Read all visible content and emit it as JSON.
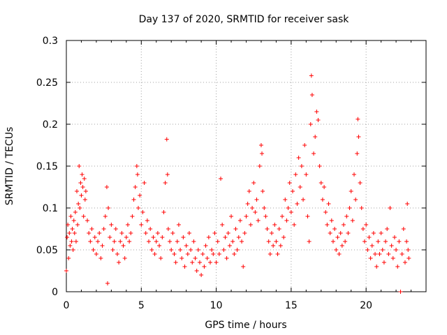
{
  "chart_data": {
    "type": "scatter",
    "title": "Day 137 of 2020, SRMTID for receiver sask",
    "xlabel": "GPS time / hours",
    "ylabel": "SRMTID / TECUs",
    "xlim": [
      0,
      24
    ],
    "ylim": [
      0,
      0.3
    ],
    "xticks": [
      0,
      5,
      10,
      15,
      20
    ],
    "yticks": [
      0,
      0.05,
      0.1,
      0.15,
      0.2,
      0.25,
      0.3
    ],
    "xtick_labels": [
      "0",
      "5",
      "10",
      "15",
      "20"
    ],
    "ytick_labels": [
      "0",
      "0.05",
      "0.1",
      "0.15",
      "0.2",
      "0.25",
      "0.3"
    ],
    "grid": true,
    "marker": "+",
    "color": "#ff0000",
    "series": [
      {
        "name": "SRMTID",
        "points": [
          [
            0.0,
            0.025
          ],
          [
            0.05,
            0.065
          ],
          [
            0.1,
            0.08
          ],
          [
            0.15,
            0.04
          ],
          [
            0.2,
            0.07
          ],
          [
            0.25,
            0.055
          ],
          [
            0.3,
            0.09
          ],
          [
            0.35,
            0.06
          ],
          [
            0.4,
            0.075
          ],
          [
            0.45,
            0.05
          ],
          [
            0.5,
            0.085
          ],
          [
            0.55,
            0.07
          ],
          [
            0.6,
            0.095
          ],
          [
            0.65,
            0.06
          ],
          [
            0.7,
            0.12
          ],
          [
            0.75,
            0.08
          ],
          [
            0.8,
            0.105
          ],
          [
            0.85,
            0.15
          ],
          [
            0.9,
            0.1
          ],
          [
            0.95,
            0.13
          ],
          [
            1.0,
            0.115
          ],
          [
            1.05,
            0.14
          ],
          [
            1.1,
            0.125
          ],
          [
            1.15,
            0.09
          ],
          [
            1.2,
            0.135
          ],
          [
            1.25,
            0.11
          ],
          [
            1.3,
            0.12
          ],
          [
            1.4,
            0.085
          ],
          [
            1.5,
            0.07
          ],
          [
            1.6,
            0.06
          ],
          [
            1.7,
            0.075
          ],
          [
            1.8,
            0.05
          ],
          [
            1.9,
            0.065
          ],
          [
            2.0,
            0.045
          ],
          [
            2.1,
            0.06
          ],
          [
            2.2,
            0.07
          ],
          [
            2.3,
            0.04
          ],
          [
            2.4,
            0.055
          ],
          [
            2.5,
            0.075
          ],
          [
            2.6,
            0.09
          ],
          [
            2.7,
            0.125
          ],
          [
            2.75,
            0.01
          ],
          [
            2.8,
            0.1
          ],
          [
            2.9,
            0.065
          ],
          [
            3.0,
            0.08
          ],
          [
            3.1,
            0.05
          ],
          [
            3.2,
            0.06
          ],
          [
            3.3,
            0.075
          ],
          [
            3.4,
            0.045
          ],
          [
            3.5,
            0.035
          ],
          [
            3.6,
            0.06
          ],
          [
            3.7,
            0.07
          ],
          [
            3.8,
            0.055
          ],
          [
            3.9,
            0.04
          ],
          [
            4.0,
            0.065
          ],
          [
            4.1,
            0.08
          ],
          [
            4.2,
            0.06
          ],
          [
            4.3,
            0.07
          ],
          [
            4.4,
            0.09
          ],
          [
            4.5,
            0.11
          ],
          [
            4.6,
            0.125
          ],
          [
            4.7,
            0.15
          ],
          [
            4.75,
            0.14
          ],
          [
            4.8,
            0.1
          ],
          [
            4.9,
            0.115
          ],
          [
            5.0,
            0.08
          ],
          [
            5.1,
            0.095
          ],
          [
            5.2,
            0.13
          ],
          [
            5.3,
            0.07
          ],
          [
            5.4,
            0.085
          ],
          [
            5.5,
            0.06
          ],
          [
            5.6,
            0.075
          ],
          [
            5.7,
            0.05
          ],
          [
            5.8,
            0.065
          ],
          [
            5.9,
            0.045
          ],
          [
            6.0,
            0.06
          ],
          [
            6.1,
            0.07
          ],
          [
            6.2,
            0.055
          ],
          [
            6.3,
            0.04
          ],
          [
            6.4,
            0.065
          ],
          [
            6.5,
            0.095
          ],
          [
            6.6,
            0.13
          ],
          [
            6.7,
            0.182
          ],
          [
            6.75,
            0.14
          ],
          [
            6.8,
            0.075
          ],
          [
            6.9,
            0.06
          ],
          [
            7.0,
            0.05
          ],
          [
            7.1,
            0.07
          ],
          [
            7.2,
            0.045
          ],
          [
            7.3,
            0.035
          ],
          [
            7.4,
            0.06
          ],
          [
            7.5,
            0.08
          ],
          [
            7.6,
            0.05
          ],
          [
            7.7,
            0.04
          ],
          [
            7.8,
            0.065
          ],
          [
            7.9,
            0.03
          ],
          [
            8.0,
            0.055
          ],
          [
            8.1,
            0.045
          ],
          [
            8.2,
            0.07
          ],
          [
            8.3,
            0.05
          ],
          [
            8.4,
            0.035
          ],
          [
            8.5,
            0.06
          ],
          [
            8.6,
            0.04
          ],
          [
            8.7,
            0.025
          ],
          [
            8.8,
            0.05
          ],
          [
            8.9,
            0.035
          ],
          [
            9.0,
            0.02
          ],
          [
            9.1,
            0.045
          ],
          [
            9.2,
            0.03
          ],
          [
            9.3,
            0.055
          ],
          [
            9.4,
            0.04
          ],
          [
            9.5,
            0.065
          ],
          [
            9.6,
            0.035
          ],
          [
            9.7,
            0.05
          ],
          [
            9.8,
            0.045
          ],
          [
            9.9,
            0.07
          ],
          [
            10.0,
            0.035
          ],
          [
            10.1,
            0.06
          ],
          [
            10.2,
            0.045
          ],
          [
            10.3,
            0.135
          ],
          [
            10.4,
            0.08
          ],
          [
            10.5,
            0.05
          ],
          [
            10.6,
            0.065
          ],
          [
            10.7,
            0.04
          ],
          [
            10.8,
            0.07
          ],
          [
            10.9,
            0.055
          ],
          [
            11.0,
            0.09
          ],
          [
            11.1,
            0.06
          ],
          [
            11.2,
            0.045
          ],
          [
            11.3,
            0.075
          ],
          [
            11.4,
            0.05
          ],
          [
            11.5,
            0.065
          ],
          [
            11.6,
            0.085
          ],
          [
            11.7,
            0.06
          ],
          [
            11.8,
            0.03
          ],
          [
            11.9,
            0.07
          ],
          [
            12.0,
            0.09
          ],
          [
            12.1,
            0.105
          ],
          [
            12.2,
            0.12
          ],
          [
            12.3,
            0.08
          ],
          [
            12.4,
            0.1
          ],
          [
            12.5,
            0.13
          ],
          [
            12.6,
            0.095
          ],
          [
            12.7,
            0.11
          ],
          [
            12.8,
            0.085
          ],
          [
            12.9,
            0.15
          ],
          [
            13.0,
            0.175
          ],
          [
            13.05,
            0.165
          ],
          [
            13.1,
            0.12
          ],
          [
            13.2,
            0.1
          ],
          [
            13.3,
            0.09
          ],
          [
            13.4,
            0.075
          ],
          [
            13.5,
            0.06
          ],
          [
            13.6,
            0.045
          ],
          [
            13.7,
            0.07
          ],
          [
            13.8,
            0.055
          ],
          [
            13.9,
            0.08
          ],
          [
            14.0,
            0.06
          ],
          [
            14.1,
            0.045
          ],
          [
            14.2,
            0.075
          ],
          [
            14.3,
            0.055
          ],
          [
            14.4,
            0.09
          ],
          [
            14.5,
            0.065
          ],
          [
            14.6,
            0.11
          ],
          [
            14.7,
            0.085
          ],
          [
            14.8,
            0.1
          ],
          [
            14.9,
            0.13
          ],
          [
            15.0,
            0.095
          ],
          [
            15.1,
            0.12
          ],
          [
            15.2,
            0.08
          ],
          [
            15.3,
            0.14
          ],
          [
            15.4,
            0.105
          ],
          [
            15.5,
            0.16
          ],
          [
            15.6,
            0.125
          ],
          [
            15.7,
            0.15
          ],
          [
            15.8,
            0.11
          ],
          [
            15.9,
            0.175
          ],
          [
            16.0,
            0.14
          ],
          [
            16.1,
            0.09
          ],
          [
            16.2,
            0.06
          ],
          [
            16.3,
            0.2
          ],
          [
            16.35,
            0.258
          ],
          [
            16.4,
            0.235
          ],
          [
            16.5,
            0.165
          ],
          [
            16.6,
            0.185
          ],
          [
            16.7,
            0.215
          ],
          [
            16.8,
            0.205
          ],
          [
            16.9,
            0.15
          ],
          [
            17.0,
            0.13
          ],
          [
            17.1,
            0.11
          ],
          [
            17.2,
            0.125
          ],
          [
            17.3,
            0.095
          ],
          [
            17.4,
            0.08
          ],
          [
            17.5,
            0.105
          ],
          [
            17.6,
            0.07
          ],
          [
            17.7,
            0.085
          ],
          [
            17.8,
            0.06
          ],
          [
            17.9,
            0.075
          ],
          [
            18.0,
            0.05
          ],
          [
            18.1,
            0.065
          ],
          [
            18.2,
            0.045
          ],
          [
            18.3,
            0.07
          ],
          [
            18.4,
            0.055
          ],
          [
            18.5,
            0.08
          ],
          [
            18.6,
            0.06
          ],
          [
            18.7,
            0.09
          ],
          [
            18.8,
            0.07
          ],
          [
            18.9,
            0.1
          ],
          [
            19.0,
            0.12
          ],
          [
            19.1,
            0.085
          ],
          [
            19.2,
            0.14
          ],
          [
            19.3,
            0.11
          ],
          [
            19.4,
            0.165
          ],
          [
            19.45,
            0.206
          ],
          [
            19.5,
            0.185
          ],
          [
            19.6,
            0.13
          ],
          [
            19.7,
            0.1
          ],
          [
            19.8,
            0.075
          ],
          [
            19.9,
            0.06
          ],
          [
            20.0,
            0.08
          ],
          [
            20.1,
            0.05
          ],
          [
            20.2,
            0.065
          ],
          [
            20.3,
            0.04
          ],
          [
            20.4,
            0.055
          ],
          [
            20.5,
            0.07
          ],
          [
            20.6,
            0.045
          ],
          [
            20.7,
            0.03
          ],
          [
            20.8,
            0.06
          ],
          [
            20.9,
            0.045
          ],
          [
            21.0,
            0.07
          ],
          [
            21.1,
            0.05
          ],
          [
            21.2,
            0.035
          ],
          [
            21.3,
            0.06
          ],
          [
            21.4,
            0.075
          ],
          [
            21.5,
            0.045
          ],
          [
            21.6,
            0.1
          ],
          [
            21.7,
            0.055
          ],
          [
            21.8,
            0.04
          ],
          [
            21.9,
            0.065
          ],
          [
            22.0,
            0.05
          ],
          [
            22.1,
            0.03
          ],
          [
            22.2,
            0.06
          ],
          [
            22.3,
            0.0
          ],
          [
            22.4,
            0.045
          ],
          [
            22.5,
            0.075
          ],
          [
            22.6,
            0.035
          ],
          [
            22.7,
            0.06
          ],
          [
            22.75,
            0.105
          ],
          [
            22.8,
            0.05
          ],
          [
            22.85,
            0.04
          ]
        ]
      }
    ]
  }
}
